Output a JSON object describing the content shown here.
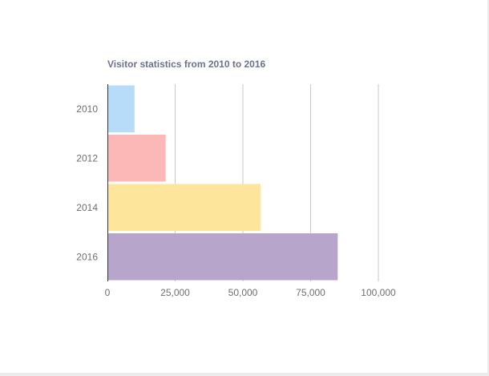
{
  "chart_data": {
    "type": "bar",
    "orientation": "horizontal",
    "title": "Visitor statistics from 2010 to 2016",
    "xlabel": "",
    "ylabel": "",
    "categories": [
      "2010",
      "2012",
      "2014",
      "2016"
    ],
    "values": [
      10000,
      21500,
      56500,
      85000
    ],
    "xlim": [
      0,
      100000
    ],
    "x_ticks": [
      0,
      25000,
      50000,
      75000,
      100000
    ],
    "x_tick_labels": [
      "0",
      "25,000",
      "50,000",
      "75,000",
      "100,000"
    ],
    "grid": true,
    "legend": "none",
    "colors": {
      "2010": "#b6dcfa",
      "2012": "#fbb8b7",
      "2014": "#fde59b",
      "2016": "#b8a5cb"
    }
  }
}
